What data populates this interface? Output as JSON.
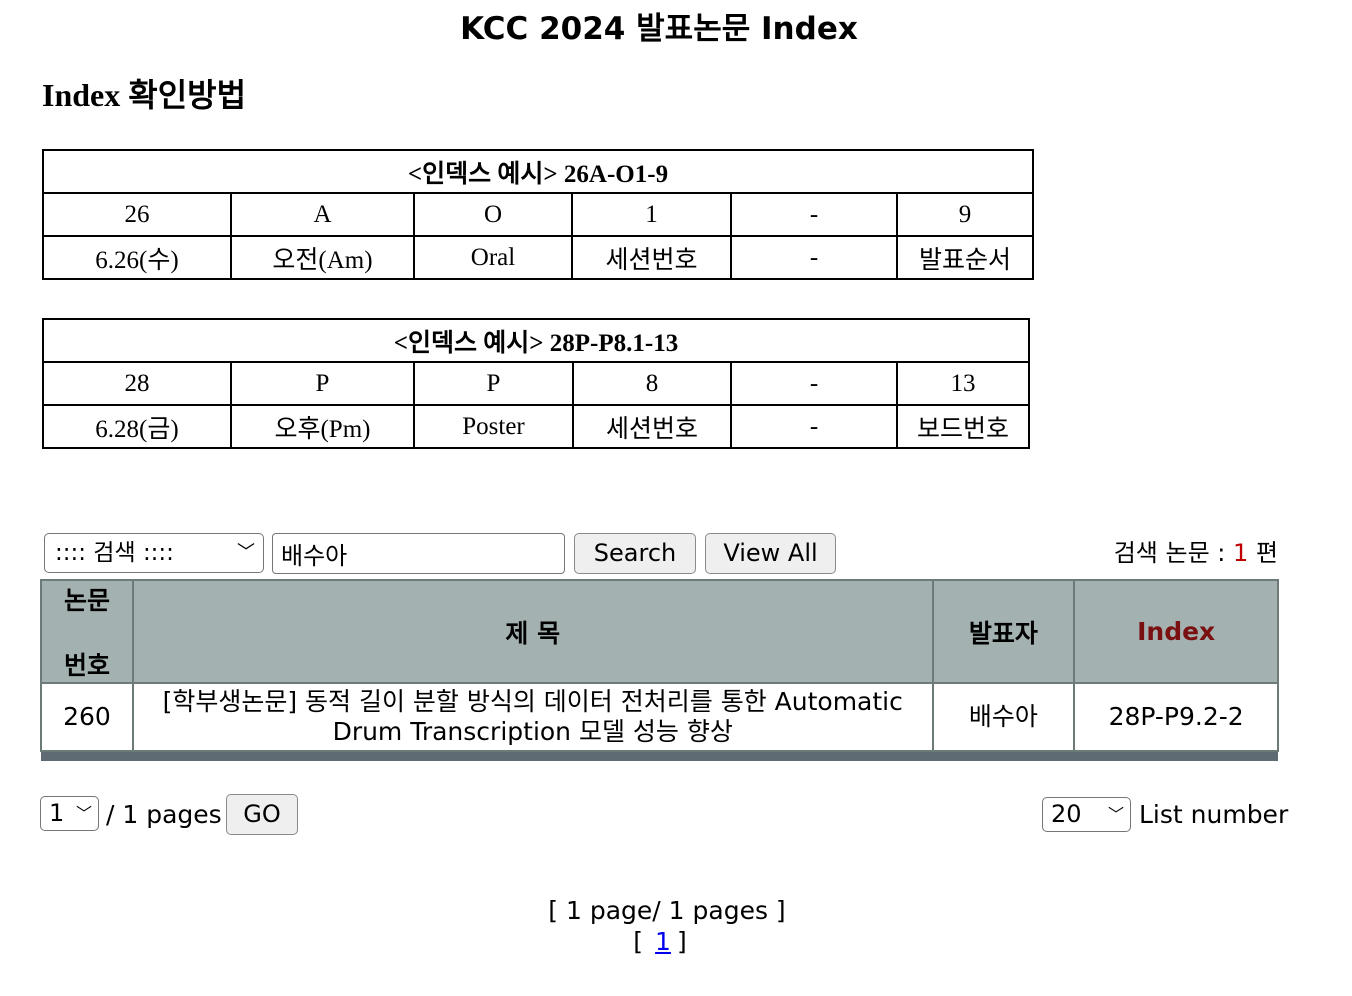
{
  "title": "KCC 2024 발표논문 Index",
  "guide_heading": "Index 확인방법",
  "examples": [
    {
      "caption_prefix": "<인덱스 예시>",
      "caption_code": "26A-O1-9",
      "codes": [
        "26",
        "A",
        "O",
        "1",
        "-",
        "9"
      ],
      "meanings": [
        "6.26(수)",
        "오전(Am)",
        "Oral",
        "세션번호",
        "-",
        "발표순서"
      ]
    },
    {
      "caption_prefix": "<인덱스 예시>",
      "caption_code": "28P-P8.1-13",
      "codes": [
        "28",
        "P",
        "P",
        "8",
        "-",
        "13"
      ],
      "meanings": [
        "6.28(금)",
        "오후(Pm)",
        "Poster",
        "세션번호",
        "-",
        "보드번호"
      ]
    }
  ],
  "search": {
    "select_value": ":::: 검색 ::::",
    "input_value": "배수아",
    "search_label": "Search",
    "viewall_label": "View All",
    "count_prefix": "검색 논문 : ",
    "count": "1",
    "count_suffix": " 편"
  },
  "results": {
    "headers": {
      "no_line1": "논문",
      "no_line2": "번호",
      "title": "제 목",
      "presenter": "발표자",
      "index": "Index"
    },
    "rows": [
      {
        "no": "260",
        "title": "[학부생논문] 동적 길이 분할 방식의 데이터 전처리를 통한 Automatic Drum Transcription 모델 성능 향상",
        "presenter": "배수아",
        "index": "28P-P9.2-2"
      }
    ]
  },
  "pager": {
    "page_value": "1",
    "pages_label": "/ 1 pages",
    "go_label": "GO",
    "list_value": "20",
    "list_label": "List number",
    "summary": "[ 1 page/ 1 pages ]",
    "link_open": "[",
    "link_page": "1",
    "link_close": "]"
  },
  "colors": {
    "header_bg": "#a3b1b0",
    "index_header": "#7a1010",
    "count_red": "#c00000",
    "footer_bar": "#5f6b73",
    "link": "#0000ee"
  }
}
